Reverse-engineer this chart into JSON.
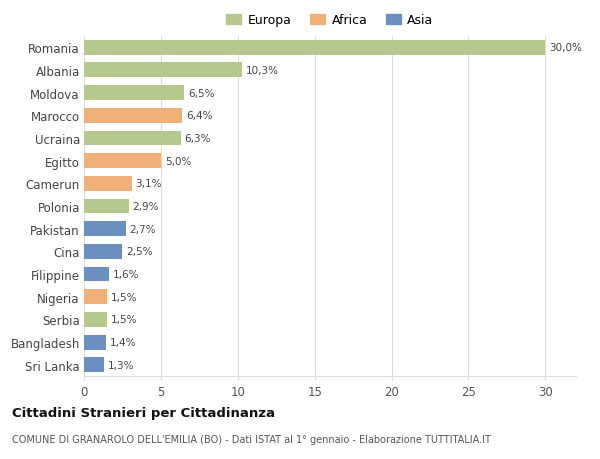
{
  "countries": [
    "Romania",
    "Albania",
    "Moldova",
    "Marocco",
    "Ucraina",
    "Egitto",
    "Camerun",
    "Polonia",
    "Pakistan",
    "Cina",
    "Filippine",
    "Nigeria",
    "Serbia",
    "Bangladesh",
    "Sri Lanka"
  ],
  "values": [
    30.0,
    10.3,
    6.5,
    6.4,
    6.3,
    5.0,
    3.1,
    2.9,
    2.7,
    2.5,
    1.6,
    1.5,
    1.5,
    1.4,
    1.3
  ],
  "labels": [
    "30,0%",
    "10,3%",
    "6,5%",
    "6,4%",
    "6,3%",
    "5,0%",
    "3,1%",
    "2,9%",
    "2,7%",
    "2,5%",
    "1,6%",
    "1,5%",
    "1,5%",
    "1,4%",
    "1,3%"
  ],
  "continents": [
    "Europa",
    "Europa",
    "Europa",
    "Africa",
    "Europa",
    "Africa",
    "Africa",
    "Europa",
    "Asia",
    "Asia",
    "Asia",
    "Africa",
    "Europa",
    "Asia",
    "Asia"
  ],
  "colors": {
    "Europa": "#b5c98e",
    "Africa": "#f0b07a",
    "Asia": "#6b8fbe"
  },
  "title": "Cittadini Stranieri per Cittadinanza",
  "subtitle": "COMUNE DI GRANAROLO DELL'EMILIA (BO) - Dati ISTAT al 1° gennaio - Elaborazione TUTTITALIA.IT",
  "xlim": [
    0,
    32
  ],
  "xticks": [
    0,
    5,
    10,
    15,
    20,
    25,
    30
  ],
  "background_color": "#ffffff",
  "grid_color": "#dddddd"
}
